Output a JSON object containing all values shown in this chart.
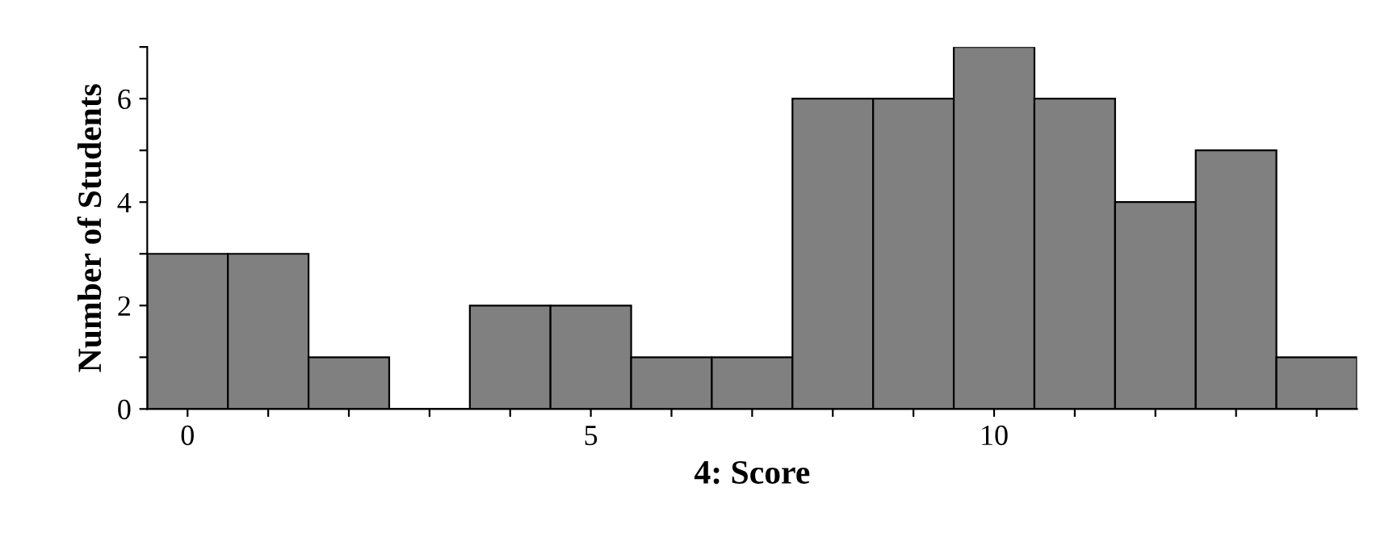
{
  "chart_data": {
    "type": "histogram",
    "xlabel": "4: Score",
    "ylabel": "Number of Students",
    "bins": [
      -0.5,
      0.5,
      1.5,
      2.5,
      3.5,
      4.5,
      5.5,
      6.5,
      7.5,
      8.5,
      9.5,
      10.5,
      11.5,
      12.5,
      13.5,
      14.5
    ],
    "values": [
      3,
      3,
      1,
      0,
      2,
      2,
      1,
      1,
      6,
      6,
      7,
      6,
      4,
      5,
      1
    ],
    "color": "#808080",
    "xlim": [
      -0.5,
      14.5
    ],
    "ylim": [
      0,
      7
    ],
    "xticks": [
      0,
      {
        "value": 1,
        "label": null
      },
      {
        "value": 2,
        "label": null
      },
      {
        "value": 3,
        "label": null
      },
      {
        "value": 4,
        "label": null
      },
      5,
      {
        "value": 6,
        "label": null
      },
      {
        "value": 7,
        "label": null
      },
      {
        "value": 8,
        "label": null
      },
      {
        "value": 9,
        "label": null
      },
      10,
      {
        "value": 11,
        "label": null
      },
      {
        "value": 12,
        "label": null
      },
      {
        "value": 13,
        "label": null
      },
      {
        "value": 14,
        "label": null
      }
    ],
    "yticks": [
      0,
      {
        "value": 1,
        "label": null
      },
      2,
      {
        "value": 3,
        "label": null
      },
      4,
      {
        "value": 5,
        "label": null
      },
      6,
      {
        "value": 7,
        "label": null
      }
    ],
    "grid": false
  }
}
